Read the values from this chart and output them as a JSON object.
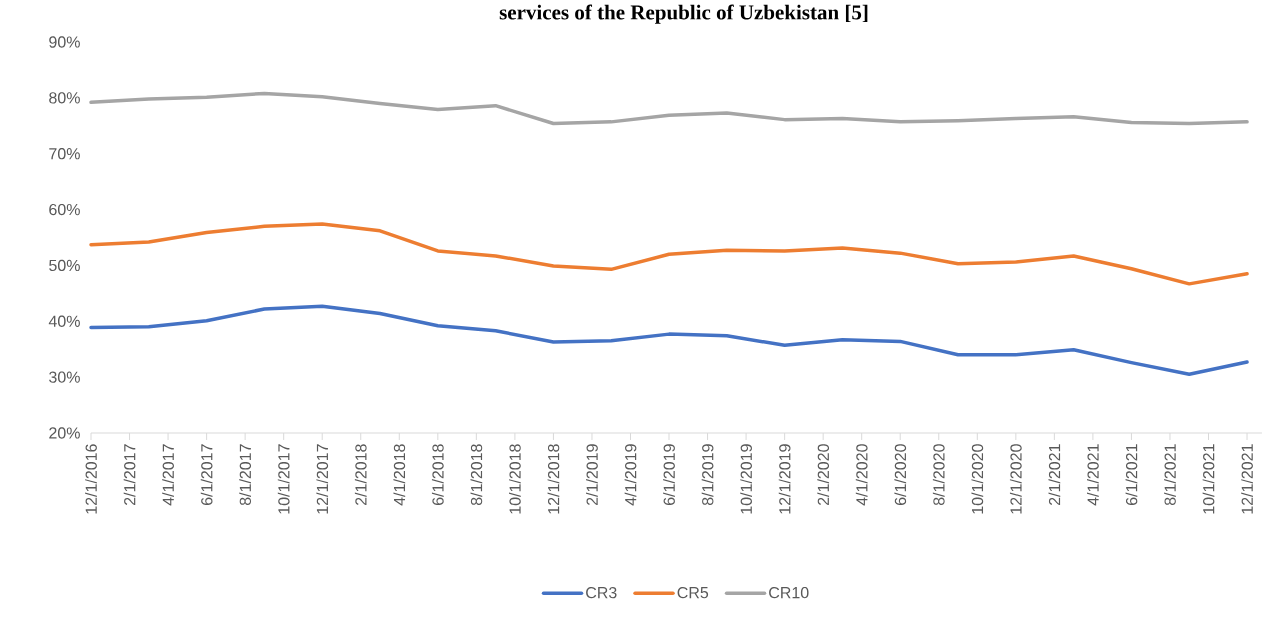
{
  "chart_data": {
    "type": "line",
    "title": "services of the Republic of Uzbekistan [5]",
    "x": [
      "2016-12-01",
      "2017-03-01",
      "2017-06-01",
      "2017-09-01",
      "2017-12-01",
      "2018-03-01",
      "2018-06-01",
      "2018-09-01",
      "2018-12-01",
      "2019-03-01",
      "2019-06-01",
      "2019-09-01",
      "2019-12-01",
      "2020-03-01",
      "2020-06-01",
      "2020-09-01",
      "2020-12-01",
      "2021-03-01",
      "2021-06-01",
      "2021-09-01",
      "2021-12-01"
    ],
    "series": [
      {
        "name": "CR3",
        "color": "#4472c4",
        "values": [
          38.9,
          39.0,
          40.1,
          42.2,
          42.7,
          41.4,
          39.2,
          38.3,
          36.3,
          36.5,
          37.7,
          37.4,
          35.7,
          36.7,
          36.4,
          34.0,
          34.0,
          34.9,
          32.6,
          30.5,
          32.7
        ]
      },
      {
        "name": "CR5",
        "color": "#ed7d31",
        "values": [
          53.7,
          54.2,
          55.9,
          57.0,
          57.4,
          56.2,
          52.6,
          51.7,
          49.9,
          49.3,
          52.0,
          52.7,
          52.6,
          53.1,
          52.2,
          50.3,
          50.6,
          51.7,
          49.4,
          46.7,
          48.5
        ]
      },
      {
        "name": "CR10",
        "color": "#a5a5a5",
        "values": [
          79.2,
          79.8,
          80.1,
          80.8,
          80.2,
          79.0,
          77.9,
          78.6,
          75.4,
          75.7,
          76.9,
          77.3,
          76.1,
          76.3,
          75.7,
          75.9,
          76.3,
          76.6,
          75.6,
          75.4,
          75.7
        ]
      }
    ],
    "xlim": [
      "2016-12-01",
      "2021-12-25"
    ],
    "xticks": [
      {
        "value": "2016-12-01",
        "label": "12/1/2016"
      },
      {
        "value": "2017-02-01",
        "label": "2/1/2017"
      },
      {
        "value": "2017-04-01",
        "label": "4/1/2017"
      },
      {
        "value": "2017-06-01",
        "label": "6/1/2017"
      },
      {
        "value": "2017-08-01",
        "label": "8/1/2017"
      },
      {
        "value": "2017-10-01",
        "label": "10/1/2017"
      },
      {
        "value": "2017-12-01",
        "label": "12/1/2017"
      },
      {
        "value": "2018-02-01",
        "label": "2/1/2018"
      },
      {
        "value": "2018-04-01",
        "label": "4/1/2018"
      },
      {
        "value": "2018-06-01",
        "label": "6/1/2018"
      },
      {
        "value": "2018-08-01",
        "label": "8/1/2018"
      },
      {
        "value": "2018-10-01",
        "label": "10/1/2018"
      },
      {
        "value": "2018-12-01",
        "label": "12/1/2018"
      },
      {
        "value": "2019-02-01",
        "label": "2/1/2019"
      },
      {
        "value": "2019-04-01",
        "label": "4/1/2019"
      },
      {
        "value": "2019-06-01",
        "label": "6/1/2019"
      },
      {
        "value": "2019-08-01",
        "label": "8/1/2019"
      },
      {
        "value": "2019-10-01",
        "label": "10/1/2019"
      },
      {
        "value": "2019-12-01",
        "label": "12/1/2019"
      },
      {
        "value": "2020-02-01",
        "label": "2/1/2020"
      },
      {
        "value": "2020-04-01",
        "label": "4/1/2020"
      },
      {
        "value": "2020-06-01",
        "label": "6/1/2020"
      },
      {
        "value": "2020-08-01",
        "label": "8/1/2020"
      },
      {
        "value": "2020-10-01",
        "label": "10/1/2020"
      },
      {
        "value": "2020-12-01",
        "label": "12/1/2020"
      },
      {
        "value": "2021-02-01",
        "label": "2/1/2021"
      },
      {
        "value": "2021-04-01",
        "label": "4/1/2021"
      },
      {
        "value": "2021-06-01",
        "label": "6/1/2021"
      },
      {
        "value": "2021-08-01",
        "label": "8/1/2021"
      },
      {
        "value": "2021-10-01",
        "label": "10/1/2021"
      },
      {
        "value": "2021-12-01",
        "label": "12/1/2021"
      }
    ],
    "ylim": [
      20,
      90
    ],
    "yticks": [
      {
        "value": 20,
        "label": "20%"
      },
      {
        "value": 30,
        "label": "30%"
      },
      {
        "value": 40,
        "label": "40%"
      },
      {
        "value": 50,
        "label": "50%"
      },
      {
        "value": 60,
        "label": "60%"
      },
      {
        "value": 70,
        "label": "70%"
      },
      {
        "value": 80,
        "label": "80%"
      },
      {
        "value": 90,
        "label": "90%"
      }
    ],
    "legend": "bottom"
  }
}
